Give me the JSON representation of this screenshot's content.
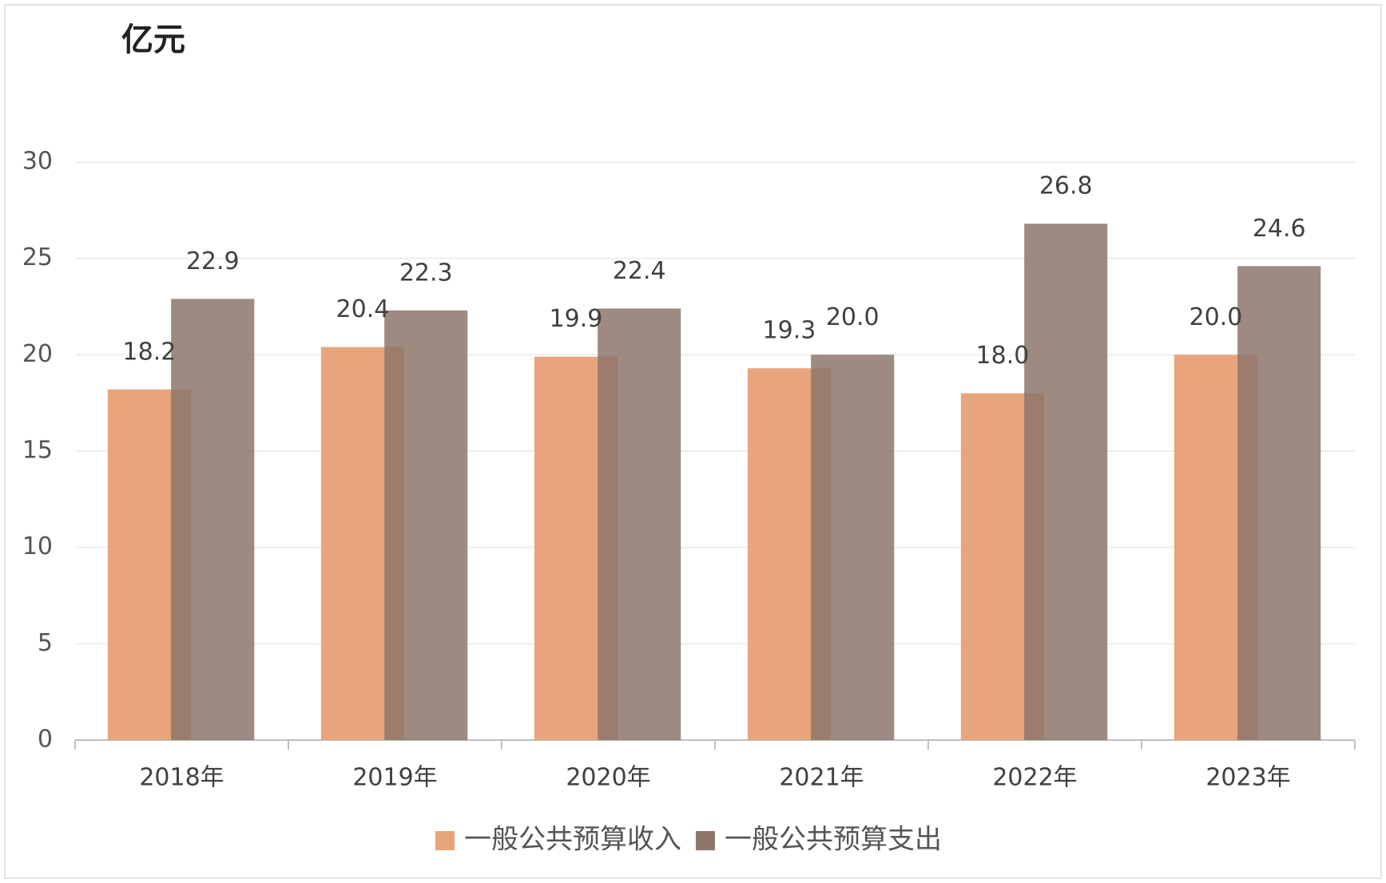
{
  "chart_data": {
    "type": "bar",
    "title": "亿元",
    "categories": [
      "2018年",
      "2019年",
      "2020年",
      "2021年",
      "2022年",
      "2023年"
    ],
    "series": [
      {
        "name": "一般公共预算收入",
        "color": "#e8a57c",
        "values": [
          18.2,
          20.4,
          19.9,
          19.3,
          18.0,
          20.0
        ],
        "value_labels": [
          "18.2",
          "20.4",
          "19.9",
          "19.3",
          "18.0",
          "20.0"
        ]
      },
      {
        "name": "一般公共预算支出",
        "color": "#8c766b",
        "values": [
          22.9,
          22.3,
          22.4,
          20.0,
          26.8,
          24.6
        ],
        "value_labels": [
          "22.9",
          "22.3",
          "22.4",
          "20.0",
          "26.8",
          "24.6"
        ]
      }
    ],
    "ylim": [
      0,
      30
    ],
    "yticks": [
      0,
      5,
      10,
      15,
      20,
      25,
      30
    ],
    "grid": true
  }
}
